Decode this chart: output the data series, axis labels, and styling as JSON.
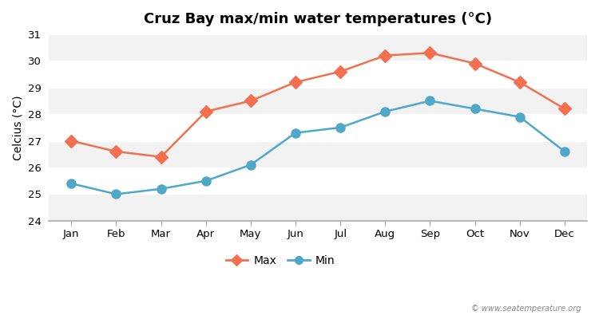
{
  "title": "Cruz Bay max/min water temperatures (°C)",
  "ylabel": "Celcius (°C)",
  "months": [
    "Jan",
    "Feb",
    "Mar",
    "Apr",
    "May",
    "Jun",
    "Jul",
    "Aug",
    "Sep",
    "Oct",
    "Nov",
    "Dec"
  ],
  "max_temps": [
    27.0,
    26.6,
    26.4,
    28.1,
    28.5,
    29.2,
    29.6,
    30.2,
    30.3,
    29.9,
    29.2,
    28.2
  ],
  "min_temps": [
    25.4,
    25.0,
    25.2,
    25.5,
    26.1,
    27.3,
    27.5,
    28.1,
    28.5,
    28.2,
    27.9,
    26.6
  ],
  "max_color": "#f07050",
  "min_color": "#4fa8c8",
  "fig_bg": "#ffffff",
  "plot_bg": "#ffffff",
  "band_color_light": "#f2f2f2",
  "band_color_white": "#ffffff",
  "bottom_spine_color": "#aaaaaa",
  "ylim": [
    24,
    31
  ],
  "yticks": [
    24,
    25,
    26,
    27,
    28,
    29,
    30,
    31
  ],
  "marker_size": 8,
  "line_width": 1.8,
  "title_fontsize": 13,
  "axis_fontsize": 10,
  "tick_fontsize": 9.5,
  "legend_fontsize": 10,
  "watermark": "© www.seatemperature.org"
}
